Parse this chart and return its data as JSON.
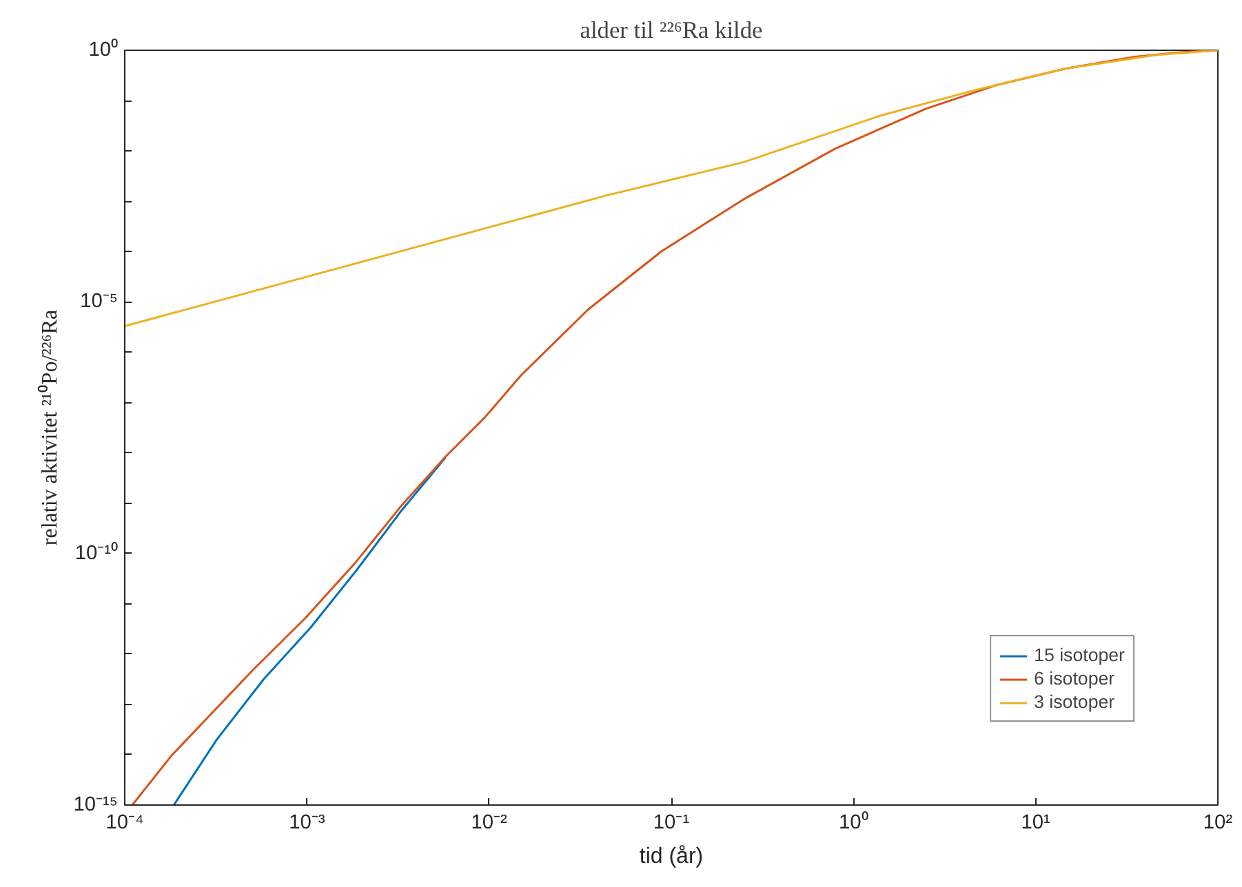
{
  "chart_data": {
    "type": "line",
    "title": "alder til ²²⁶Ra kilde",
    "xlabel": "tid (år)",
    "ylabel": "relativ aktivitet ²¹⁰Po/²²⁶Ra",
    "log": "xy",
    "grid": false,
    "legend": "bottom right",
    "marker": "none",
    "line_style": "solid",
    "xlim": [
      0.0001,
      100
    ],
    "ylim": [
      1e-15,
      1
    ],
    "xticks": [
      {
        "value": 0.0001,
        "label": "10⁻⁴"
      },
      {
        "value": 0.001,
        "label": "10⁻³"
      },
      {
        "value": 0.01,
        "label": "10⁻²"
      },
      {
        "value": 0.1,
        "label": "10⁻¹"
      },
      {
        "value": 1,
        "label": "10⁰"
      },
      {
        "value": 10,
        "label": "10¹"
      },
      {
        "value": 100,
        "label": "10²"
      }
    ],
    "yticks": [
      {
        "value": 1e-15,
        "label": "10⁻¹⁵"
      },
      {
        "value": 1e-14,
        "label": null
      },
      {
        "value": 1e-13,
        "label": null
      },
      {
        "value": 1e-12,
        "label": null
      },
      {
        "value": 1e-11,
        "label": null
      },
      {
        "value": 1e-10,
        "label": "10⁻¹⁰"
      },
      {
        "value": 1e-09,
        "label": null
      },
      {
        "value": 1e-08,
        "label": null
      },
      {
        "value": 1e-07,
        "label": null
      },
      {
        "value": 1e-06,
        "label": null
      },
      {
        "value": 1e-05,
        "label": "10⁻⁵"
      },
      {
        "value": 0.0001,
        "label": null
      },
      {
        "value": 0.001,
        "label": null
      },
      {
        "value": 0.01,
        "label": null
      },
      {
        "value": 0.1,
        "label": null
      },
      {
        "value": 1,
        "label": "10⁰"
      }
    ],
    "series": [
      {
        "name": "15 isotoper",
        "color": "#0072bd",
        "x": [
          0.000186,
          0.00032,
          0.00058,
          0.00105,
          0.00186,
          0.0033,
          0.00575
        ],
        "values": [
          1e-15,
          2e-14,
          3.2e-13,
          3.4e-12,
          4.5e-11,
          7.1e-10,
          8e-09
        ]
      },
      {
        "name": "6 isotoper",
        "color": "#d95319",
        "x": [
          0.00011,
          0.00018,
          0.00051,
          0.00098,
          0.00186,
          0.0033,
          0.00575,
          0.0095,
          0.015,
          0.035,
          0.088,
          0.25,
          0.79,
          2.5,
          6.0,
          14.5,
          35,
          62,
          100
        ],
        "values": [
          1e-15,
          9.5e-15,
          5e-13,
          5.2e-12,
          6.8e-11,
          8.9e-10,
          8.3e-09,
          5.1e-08,
          3.5e-07,
          7.1e-06,
          0.0001,
          0.0011,
          0.011,
          0.069,
          0.2,
          0.43,
          0.74,
          0.91,
          1
        ]
      },
      {
        "name": "3 isotoper",
        "color": "#edb120",
        "x": [
          0.0001,
          0.044,
          0.25,
          1.4,
          4.6,
          14.5,
          46,
          100
        ],
        "values": [
          3.3e-06,
          0.0013,
          0.006,
          0.05,
          0.16,
          0.43,
          0.81,
          1
        ]
      }
    ]
  }
}
